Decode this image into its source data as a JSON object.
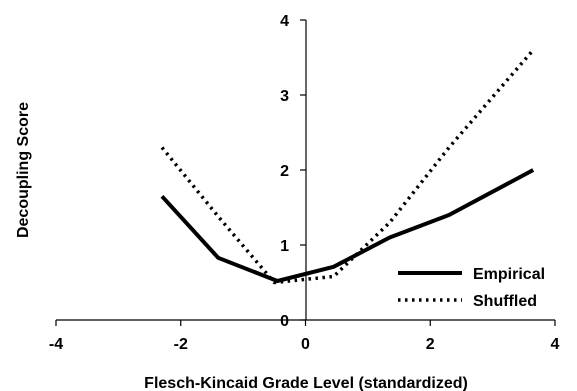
{
  "chart_data": {
    "type": "line",
    "title": "",
    "xlabel": "Flesch-Kincaid Grade Level (standardized)",
    "ylabel": "Decoupling Score",
    "xlim": [
      -4,
      4
    ],
    "ylim": [
      0,
      4
    ],
    "xticks": [
      -4,
      -2,
      0,
      2,
      4
    ],
    "yticks": [
      0,
      1,
      2,
      3,
      4
    ],
    "xtick_labels": [
      "-4",
      "-2",
      "0",
      "2",
      "4"
    ],
    "ytick_labels": [
      "0",
      "1",
      "2",
      "3",
      "4"
    ],
    "grid": false,
    "legend_position": "bottom-right",
    "series": [
      {
        "name": "Empirical",
        "style": "solid",
        "color": "#000000",
        "x": [
          -2.3,
          -1.4,
          -0.45,
          0.45,
          1.35,
          2.3,
          3.65
        ],
        "y": [
          1.65,
          0.83,
          0.52,
          0.71,
          1.1,
          1.4,
          2.0
        ]
      },
      {
        "name": "Shuffled",
        "style": "dotted",
        "color": "#000000",
        "x": [
          -2.3,
          -1.4,
          -0.5,
          0.45,
          1.35,
          2.3,
          3.65
        ],
        "y": [
          2.3,
          1.38,
          0.5,
          0.58,
          1.3,
          2.3,
          3.6
        ]
      }
    ]
  }
}
